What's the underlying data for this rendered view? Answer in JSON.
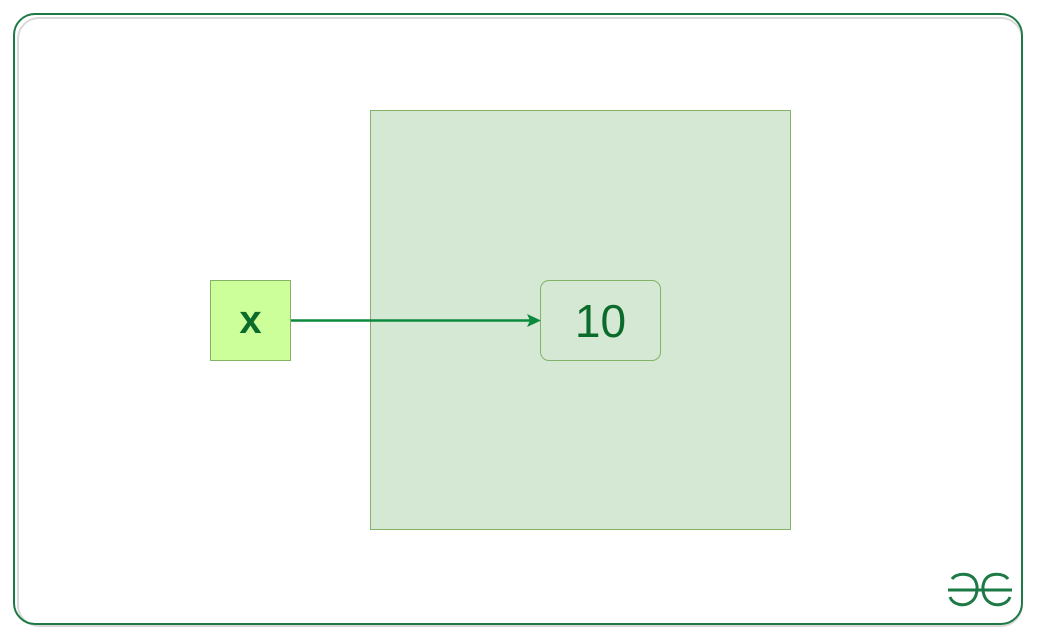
{
  "diagram": {
    "variable": {
      "label": "x"
    },
    "object": {
      "value": "10"
    },
    "relation": "x references 10"
  },
  "logo": {
    "name": "gfg-logo-icon",
    "text": "GG"
  },
  "colors": {
    "frame_border": "#1e7a45",
    "memory_fill": "#d5e8d4",
    "memory_border": "#82b366",
    "variable_fill": "#ccff99",
    "text_dark_green": "#0b6b2b",
    "arrow": "#0b8a3e"
  }
}
